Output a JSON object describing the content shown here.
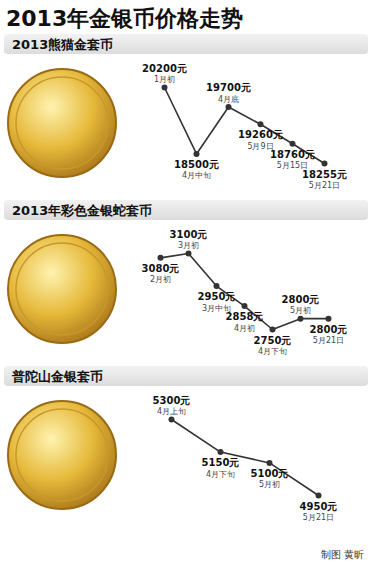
{
  "title": "2013年金银币价格走势",
  "credit": "制图 黄昕",
  "chart_data": [
    {
      "type": "line",
      "title": "2013熊猫金套币",
      "categories": [
        "1月初",
        "4月中旬",
        "4月底",
        "5月9日",
        "5月15日",
        "5月21日"
      ],
      "values": [
        20200,
        18500,
        19700,
        19260,
        18760,
        18255
      ],
      "value_labels": [
        "20200元",
        "18500元",
        "19700元",
        "19260元",
        "18760元",
        "18255元"
      ],
      "data_labels": true,
      "tick_labels": false,
      "color": "#333333",
      "marker": "circle"
    },
    {
      "type": "line",
      "title": "2013年彩色金银蛇套币",
      "categories": [
        "2月初",
        "3月初",
        "3月中旬",
        "4月初",
        "4月下旬",
        "5月初",
        "5月21日"
      ],
      "values": [
        3080,
        3100,
        2950,
        2858,
        2750,
        2800,
        2800
      ],
      "value_labels": [
        "3080元",
        "3100元",
        "2950元",
        "2858元",
        "2750元",
        "2800元",
        "2800元"
      ],
      "data_labels": true,
      "tick_labels": false,
      "color": "#333333",
      "marker": "circle"
    },
    {
      "type": "line",
      "title": "普陀山金银套币",
      "categories": [
        "4月上旬",
        "4月下旬",
        "5月初",
        "5月21日"
      ],
      "values": [
        5300,
        5150,
        5100,
        4950
      ],
      "value_labels": [
        "5300元",
        "5150元",
        "5100元",
        "4950元"
      ],
      "data_labels": true,
      "tick_labels": false,
      "color": "#333333",
      "marker": "circle"
    }
  ]
}
